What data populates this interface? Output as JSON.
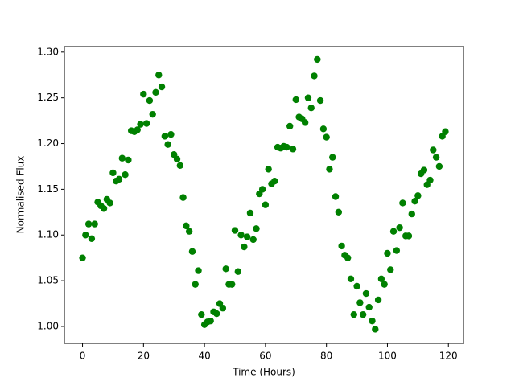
{
  "chart_data": {
    "type": "scatter",
    "xlabel": "Time (Hours)",
    "ylabel": "Normalised Flux",
    "color": "#008000",
    "x": [
      0,
      1,
      2,
      3,
      4,
      5,
      6,
      7,
      8,
      9,
      10,
      11,
      12,
      13,
      14,
      15,
      16,
      17,
      18,
      19,
      20,
      21,
      22,
      23,
      24,
      25,
      26,
      27,
      28,
      29,
      30,
      31,
      32,
      33,
      34,
      35,
      36,
      37,
      38,
      39,
      40,
      41,
      42,
      43,
      44,
      45,
      46,
      47,
      48,
      49,
      50,
      51,
      52,
      53,
      54,
      55,
      56,
      57,
      58,
      59,
      60,
      61,
      62,
      63,
      64,
      65,
      66,
      67,
      68,
      69,
      70,
      71,
      72,
      73,
      74,
      75,
      76,
      77,
      78,
      79,
      80,
      81,
      82,
      83,
      84,
      85,
      86,
      87,
      88,
      89,
      90,
      91,
      92,
      93,
      94,
      95,
      96,
      97,
      98,
      99,
      100,
      101,
      102,
      103,
      104,
      105,
      106,
      107,
      108,
      109,
      110,
      111,
      112,
      113,
      114,
      115,
      116,
      117,
      118,
      119
    ],
    "values": [
      1.075,
      1.1,
      1.112,
      1.096,
      1.112,
      1.136,
      1.132,
      1.129,
      1.139,
      1.135,
      1.168,
      1.159,
      1.161,
      1.184,
      1.166,
      1.182,
      1.214,
      1.213,
      1.215,
      1.221,
      1.254,
      1.222,
      1.247,
      1.232,
      1.256,
      1.275,
      1.262,
      1.208,
      1.199,
      1.21,
      1.188,
      1.183,
      1.176,
      1.141,
      1.11,
      1.104,
      1.082,
      1.046,
      1.061,
      1.013,
      1.002,
      1.005,
      1.006,
      1.016,
      1.014,
      1.025,
      1.02,
      1.063,
      1.046,
      1.046,
      1.105,
      1.06,
      1.1,
      1.087,
      1.098,
      1.124,
      1.095,
      1.107,
      1.145,
      1.15,
      1.133,
      1.172,
      1.156,
      1.159,
      1.196,
      1.195,
      1.197,
      1.196,
      1.219,
      1.194,
      1.248,
      1.229,
      1.227,
      1.223,
      1.25,
      1.239,
      1.274,
      1.292,
      1.247,
      1.216,
      1.207,
      1.172,
      1.185,
      1.142,
      1.125,
      1.088,
      1.078,
      1.075,
      1.052,
      1.013,
      1.044,
      1.026,
      1.013,
      1.036,
      1.021,
      1.006,
      0.997,
      1.029,
      1.052,
      1.046,
      1.08,
      1.062,
      1.104,
      1.083,
      1.108,
      1.135,
      1.099,
      1.099,
      1.123,
      1.137,
      1.143,
      1.167,
      1.171,
      1.155,
      1.16,
      1.193,
      1.185,
      1.175,
      1.208,
      1.213
    ],
    "xlim": [
      -5.95,
      124.95
    ],
    "ylim": [
      0.9815,
      1.306
    ],
    "xticks": [
      0,
      20,
      40,
      60,
      80,
      100,
      120
    ],
    "yticks": [
      {
        "value": 1.0,
        "label": "1.00"
      },
      1.05,
      {
        "value": 1.1,
        "label": "1.10"
      },
      1.15,
      {
        "value": 1.2,
        "label": "1.20"
      },
      1.25,
      {
        "value": 1.3,
        "label": "1.30"
      }
    ]
  }
}
